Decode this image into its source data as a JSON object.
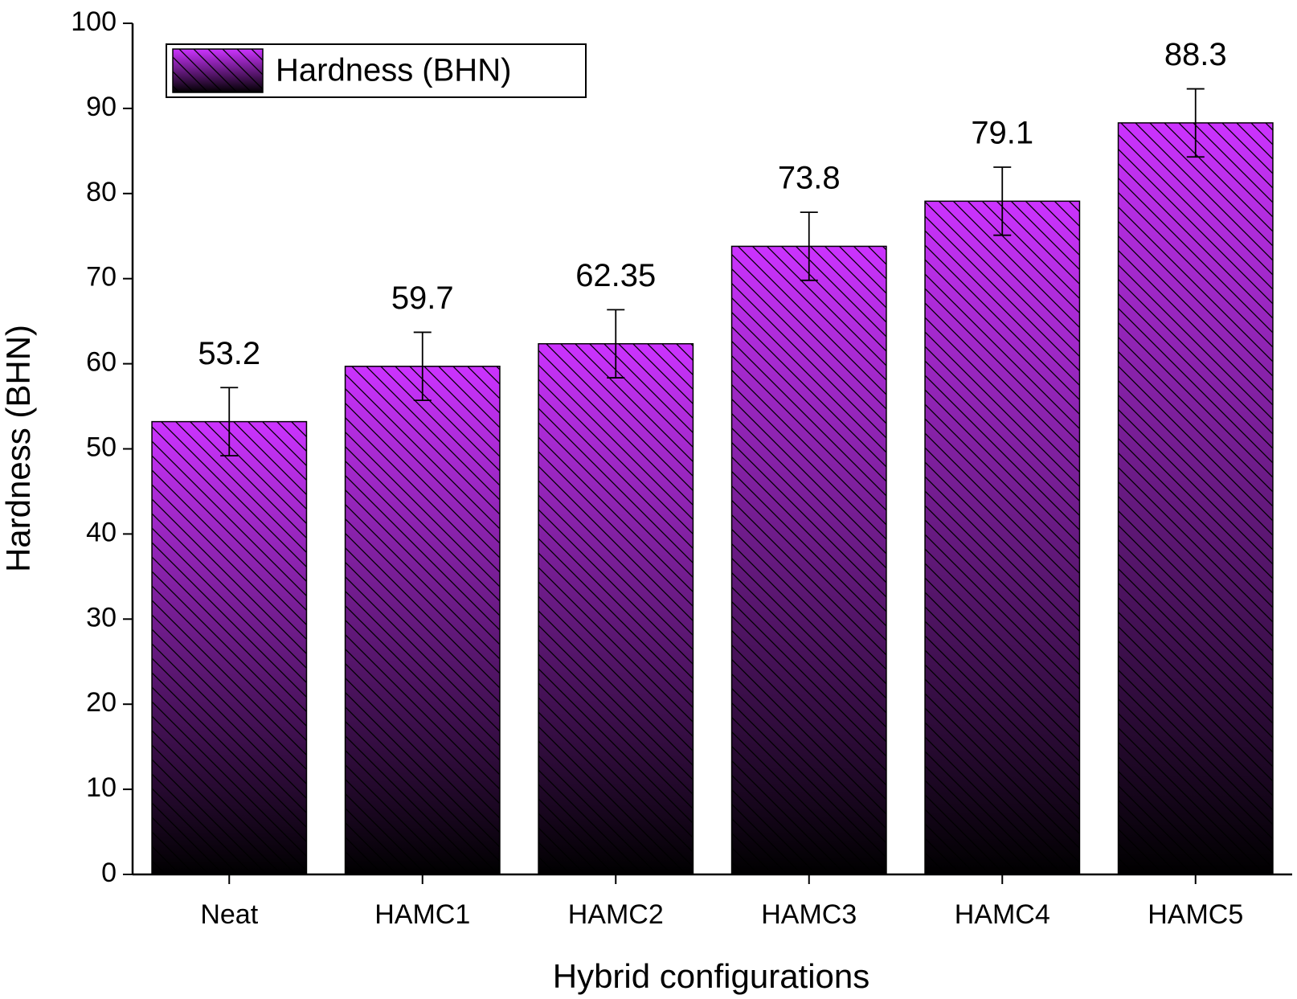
{
  "chart_data": {
    "type": "bar",
    "xlabel": "Hybrid configurations",
    "ylabel": "Hardness (BHN)",
    "categories": [
      "Neat",
      "HAMC1",
      "HAMC2",
      "HAMC3",
      "HAMC4",
      "HAMC5"
    ],
    "series": [
      {
        "name": "Hardness (BHN)",
        "color": "#cc33ff",
        "values": [
          53.2,
          59.7,
          62.35,
          73.8,
          79.1,
          88.3
        ],
        "errors": [
          4,
          4,
          4,
          4,
          4,
          4
        ]
      }
    ],
    "ylim": [
      0,
      100
    ],
    "yticks": [
      0,
      10,
      20,
      30,
      40,
      50,
      60,
      70,
      80,
      90,
      100
    ],
    "legend": "upper left"
  }
}
